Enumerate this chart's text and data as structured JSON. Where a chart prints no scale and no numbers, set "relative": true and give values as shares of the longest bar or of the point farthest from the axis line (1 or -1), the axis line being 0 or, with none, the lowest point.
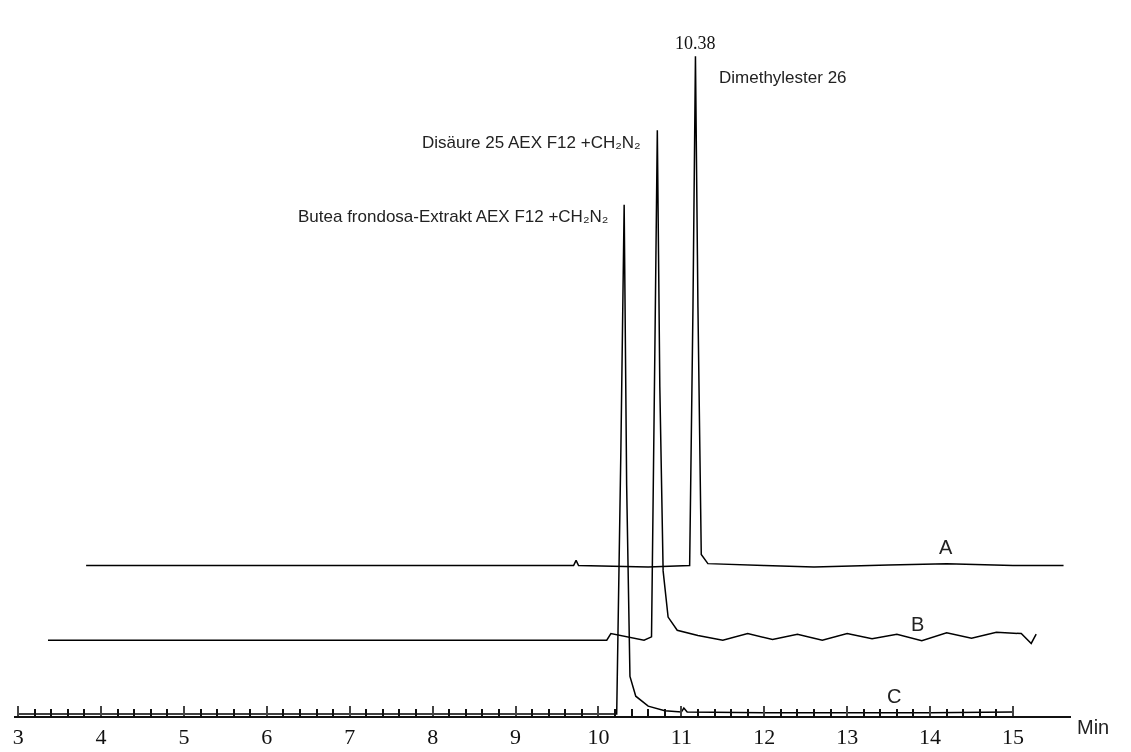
{
  "chart_data": {
    "type": "line",
    "relative": true,
    "xlabel": "Min",
    "grid": false,
    "legend": false,
    "marker": "none",
    "line_style": "solid",
    "xlim": [
      2.95,
      15.7
    ],
    "xticks": [
      3,
      {
        "value": 3.2,
        "label": null
      },
      {
        "value": 3.4,
        "label": null
      },
      {
        "value": 3.6,
        "label": null
      },
      {
        "value": 3.8,
        "label": null
      },
      4,
      {
        "value": 4.2,
        "label": null
      },
      {
        "value": 4.4,
        "label": null
      },
      {
        "value": 4.6,
        "label": null
      },
      {
        "value": 4.8,
        "label": null
      },
      5,
      {
        "value": 5.2,
        "label": null
      },
      {
        "value": 5.4,
        "label": null
      },
      {
        "value": 5.6,
        "label": null
      },
      {
        "value": 5.8,
        "label": null
      },
      6,
      {
        "value": 6.2,
        "label": null
      },
      {
        "value": 6.4,
        "label": null
      },
      {
        "value": 6.6,
        "label": null
      },
      {
        "value": 6.8,
        "label": null
      },
      7,
      {
        "value": 7.2,
        "label": null
      },
      {
        "value": 7.4,
        "label": null
      },
      {
        "value": 7.6,
        "label": null
      },
      {
        "value": 7.8,
        "label": null
      },
      8,
      {
        "value": 8.2,
        "label": null
      },
      {
        "value": 8.4,
        "label": null
      },
      {
        "value": 8.6,
        "label": null
      },
      {
        "value": 8.8,
        "label": null
      },
      9,
      {
        "value": 9.2,
        "label": null
      },
      {
        "value": 9.4,
        "label": null
      },
      {
        "value": 9.6,
        "label": null
      },
      {
        "value": 9.8,
        "label": null
      },
      10,
      {
        "value": 10.2,
        "label": null
      },
      {
        "value": 10.4,
        "label": null
      },
      {
        "value": 10.6,
        "label": null
      },
      {
        "value": 10.8,
        "label": null
      },
      11,
      {
        "value": 11.2,
        "label": null
      },
      {
        "value": 11.4,
        "label": null
      },
      {
        "value": 11.6,
        "label": null
      },
      {
        "value": 11.8,
        "label": null
      },
      12,
      {
        "value": 12.2,
        "label": null
      },
      {
        "value": 12.4,
        "label": null
      },
      {
        "value": 12.6,
        "label": null
      },
      {
        "value": 12.8,
        "label": null
      },
      13,
      {
        "value": 13.2,
        "label": null
      },
      {
        "value": 13.4,
        "label": null
      },
      {
        "value": 13.6,
        "label": null
      },
      {
        "value": 13.8,
        "label": null
      },
      14,
      {
        "value": 14.2,
        "label": null
      },
      {
        "value": 14.4,
        "label": null
      },
      {
        "value": 14.6,
        "label": null
      },
      {
        "value": 14.8,
        "label": null
      },
      15
    ],
    "series": [
      {
        "name": "A",
        "color": "#000000",
        "x": [
          3.82,
          4.9,
          6.0,
          8.0,
          9.7,
          9.73,
          9.76,
          10.6,
          11.1,
          11.14,
          11.17,
          11.2,
          11.24,
          11.32,
          12.0,
          12.6,
          13.5,
          14.2,
          15.0,
          15.61
        ],
        "values": [
          0.228,
          0.228,
          0.228,
          0.228,
          0.228,
          0.236,
          0.228,
          0.226,
          0.228,
          0.62,
          1.0,
          0.62,
          0.245,
          0.231,
          0.228,
          0.226,
          0.229,
          0.231,
          0.228,
          0.228
        ]
      },
      {
        "name": "B",
        "color": "#000000",
        "x": [
          3.36,
          5.0,
          7.0,
          8.5,
          10.1,
          10.15,
          10.55,
          10.64,
          10.68,
          10.71,
          10.74,
          10.78,
          10.84,
          10.95,
          11.2,
          11.5,
          11.8,
          12.1,
          12.4,
          12.7,
          13.0,
          13.3,
          13.6,
          13.9,
          14.2,
          14.5,
          14.8,
          15.1,
          15.22,
          15.28
        ],
        "values": [
          0.115,
          0.115,
          0.115,
          0.115,
          0.115,
          0.125,
          0.115,
          0.12,
          0.55,
          0.888,
          0.5,
          0.22,
          0.15,
          0.13,
          0.122,
          0.115,
          0.125,
          0.116,
          0.124,
          0.115,
          0.125,
          0.117,
          0.124,
          0.114,
          0.126,
          0.118,
          0.127,
          0.125,
          0.11,
          0.124
        ]
      },
      {
        "name": "C",
        "color": "#000000",
        "x": [
          3.0,
          6.0,
          9.0,
          10.22,
          10.27,
          10.31,
          10.34,
          10.38,
          10.45,
          10.6,
          10.8,
          11.0,
          11.03,
          11.07,
          12.0,
          13.0,
          14.0,
          15.0
        ],
        "values": [
          0.003,
          0.003,
          0.003,
          0.003,
          0.4,
          0.775,
          0.35,
          0.06,
          0.03,
          0.015,
          0.008,
          0.006,
          0.012,
          0.006,
          0.005,
          0.005,
          0.005,
          0.006
        ]
      }
    ],
    "annotations": [
      {
        "text": "10.38",
        "x": 11.17,
        "y": 1.0
      },
      {
        "text": "Dimethylester 26",
        "x": 11.17,
        "y": 1.0
      },
      {
        "text": "Disäure 25 AEX F12 +CH₂N₂",
        "x": 10.71,
        "y": 0.888
      },
      {
        "text": "Butea frondosa-Extrakt AEX F12 +CH₂N₂",
        "x": 10.31,
        "y": 0.775
      }
    ]
  }
}
